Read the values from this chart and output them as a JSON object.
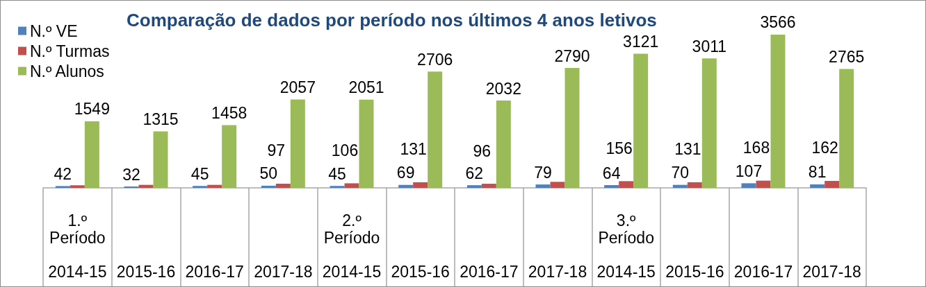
{
  "chart_data": {
    "type": "bar",
    "title": "Comparação de dados por período nos últimos 4 anos letivos",
    "categories": [
      "1.º Período\n2014-15",
      "2015-16",
      "2016-17",
      "2017-18",
      "2.º Período\n2014-15",
      "2015-16",
      "2016-17",
      "2017-18",
      "3.º Período\n2014-15",
      "2015-16",
      "2016-17",
      "2017-18"
    ],
    "series": [
      {
        "name": "N.º VE",
        "color": "#4f81bd",
        "values": [
          42,
          32,
          45,
          50,
          45,
          69,
          62,
          79,
          64,
          70,
          107,
          81
        ],
        "value_labels": [
          "42",
          "32",
          "45",
          "50",
          "45",
          "69",
          "62",
          "79",
          "64",
          "70",
          "107",
          "81"
        ]
      },
      {
        "name": "N.º Turmas",
        "color": "#c0504d",
        "values": [
          60,
          70,
          70,
          97,
          106,
          131,
          96,
          140,
          156,
          131,
          168,
          162
        ],
        "value_labels": [
          null,
          null,
          null,
          "97",
          "106",
          "131",
          "96",
          null,
          "156",
          "131",
          "168",
          "162"
        ]
      },
      {
        "name": "N.º Alunos",
        "color": "#9bbb59",
        "values": [
          1549,
          1315,
          1458,
          2057,
          2051,
          2706,
          2032,
          2790,
          3121,
          3011,
          3566,
          2765
        ],
        "value_labels": [
          "1549",
          "1315",
          "1458",
          "2057",
          "2051",
          "2706",
          "2032",
          "2790",
          "3121",
          "3011",
          "3566",
          "2765"
        ]
      }
    ],
    "legend": "top left",
    "tick_labels": "x"
  }
}
